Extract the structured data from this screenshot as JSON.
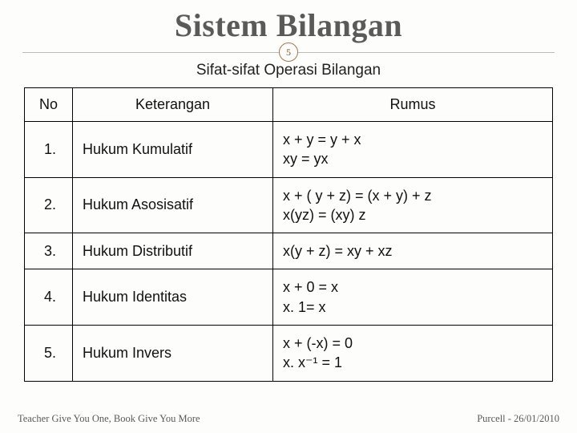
{
  "title": "Sistem Bilangan",
  "page_number": "5",
  "subtitle": "Sifat-sifat Operasi Bilangan",
  "columns": {
    "no": "No",
    "ket": "Keterangan",
    "rumus": "Rumus"
  },
  "rows": [
    {
      "no": "1.",
      "ket": "Hukum Kumulatif",
      "rumus": [
        "x + y = y + x",
        "xy = yx"
      ]
    },
    {
      "no": "2.",
      "ket": "Hukum Asosisatif",
      "rumus": [
        "x + ( y + z) = (x + y) + z",
        "x(yz) = (xy) z"
      ]
    },
    {
      "no": "3.",
      "ket": "Hukum Distributif",
      "rumus": [
        "x(y + z) = xy + xz"
      ]
    },
    {
      "no": "4.",
      "ket": "Hukum Identitas",
      "rumus": [
        "x + 0 = x",
        "x. 1= x"
      ]
    },
    {
      "no": "5.",
      "ket": "Hukum Invers",
      "rumus": [
        "x + (-x) = 0",
        "x. x⁻¹ = 1"
      ]
    }
  ],
  "footer_left": "Teacher Give You One, Book Give You More",
  "footer_right": "Purcell - 26/01/2010",
  "colors": {
    "title": "#5a5a58",
    "badge_border": "#a07850",
    "badge_text": "#7a5a3a",
    "rule": "#bdbdb8",
    "border": "#000000",
    "bg": "#fdfdfb"
  },
  "fontsizes": {
    "title": 40,
    "subtitle": 19,
    "cell": 18,
    "footer": 12.5,
    "badge": 12
  }
}
